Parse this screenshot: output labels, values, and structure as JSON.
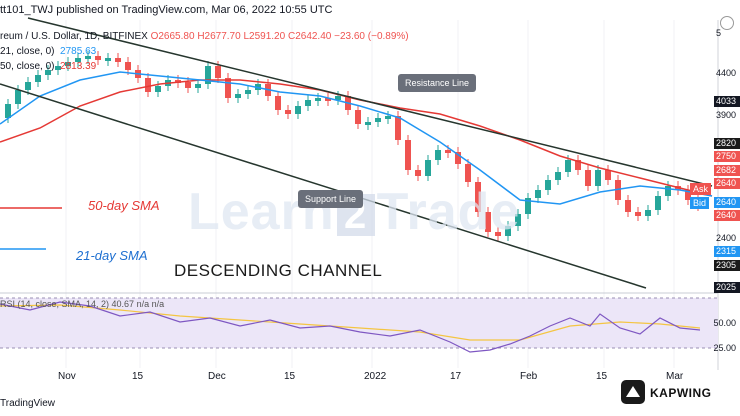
{
  "header": {
    "published": "tt101_TWJ published on TradingView.com, Mar 06, 2022 10:55 UTC",
    "symbol_line": "reum / U.S. Dollar, 1D, BITFINEX",
    "ohlc_o": "O2665.80",
    "ohlc_h": "H2677.70",
    "ohlc_l": "L2591.20",
    "ohlc_c": "C2642.40",
    "change": "−23.60 (−0.89%)",
    "sma21_label": "21, close, 0)",
    "sma21_value": "2785.63",
    "sma50_label": "50, close, 0)",
    "sma50_value": "2813.39"
  },
  "annotations": {
    "resistance": "Resistance Line",
    "support": "Support Line",
    "sma50": "50-day SMA",
    "sma21": "21-day SMA",
    "channel": "DESCENDING CHANNEL"
  },
  "watermark": {
    "left": "Learn",
    "mid": "2",
    "right": "Trade"
  },
  "price_axis": {
    "labels": [
      "4400",
      "4033",
      "3900",
      "2820",
      "2750",
      "2682",
      "2640",
      "2640",
      "2640",
      "2400",
      "2315",
      "2305",
      "2025"
    ],
    "top_label": "5"
  },
  "ask": "Ask",
  "bid": "Bid",
  "x_axis": [
    "Nov",
    "15",
    "Dec",
    "15",
    "2022",
    "17",
    "Feb",
    "15",
    "Mar"
  ],
  "rsi": {
    "header": "RSI (14, close, SMA, 14, 2)  40.67  n/a  n/a",
    "ticks": [
      "50.00",
      "25.00"
    ]
  },
  "footer": "TradingView",
  "kapwing": "KAPWING",
  "colors": {
    "bull": "#26a69a",
    "bear": "#ef5350",
    "sma50": "#e53935",
    "sma21": "#2196f3",
    "channel": "#1f3a2c",
    "rsi": "#7e57c2",
    "rsi_ma": "#f4c542"
  }
}
